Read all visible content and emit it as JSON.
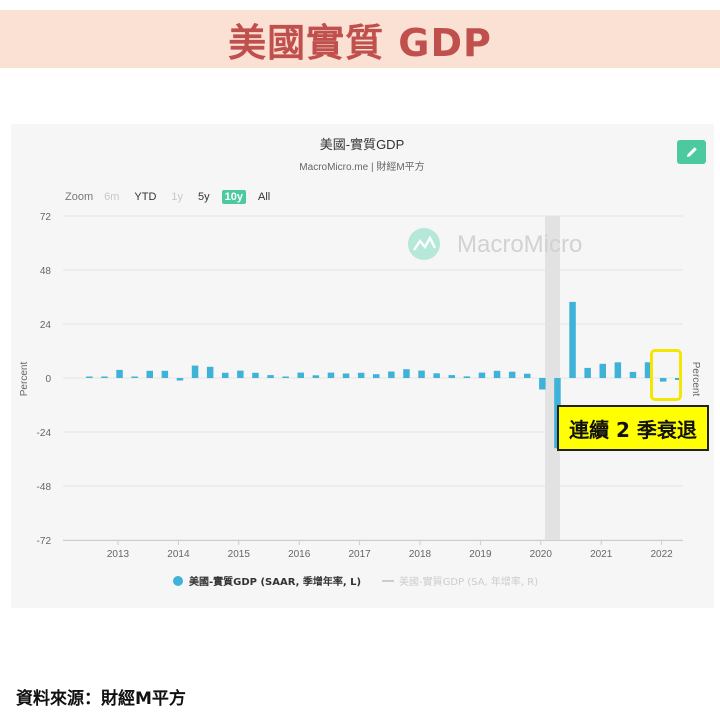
{
  "banner": {
    "title": "美國實質 GDP"
  },
  "source": {
    "text": "資料來源：財經M平方"
  },
  "callout": {
    "text": "連續 2 季衰退"
  },
  "toolbar": {
    "zoom_label": "Zoom",
    "ranges": [
      {
        "label": "6m",
        "state": "disabled"
      },
      {
        "label": "YTD",
        "state": "normal"
      },
      {
        "label": "1y",
        "state": "disabled"
      },
      {
        "label": "5y",
        "state": "normal"
      },
      {
        "label": "10y",
        "state": "active"
      },
      {
        "label": "All",
        "state": "normal"
      }
    ],
    "edit_icon": "pencil-icon"
  },
  "colors": {
    "accent": "#4dc9a0",
    "bar": "#3fb2d8",
    "line": "#cccccc",
    "banner_bg": "#fbe1d3",
    "banner_text": "#c0504d"
  },
  "chart_data": {
    "type": "bar",
    "title": "美國-實質GDP",
    "subtitle": "MacroMicro.me | 財經M平方",
    "watermark": "MacroMicro",
    "ylabel_left": "Percent",
    "ylabel_right": "Percent",
    "ylim": [
      -72,
      72
    ],
    "yticks": [
      72,
      48,
      24,
      0,
      -24,
      -48,
      -72
    ],
    "xticks": [
      "2013",
      "2014",
      "2015",
      "2016",
      "2017",
      "2018",
      "2019",
      "2020",
      "2021",
      "2022"
    ],
    "recession_shading": "2020",
    "series": [
      {
        "name": "美國-實質GDP (SAAR, 季增年率, L)",
        "type": "bar",
        "x": [
          "2012Q3",
          "2012Q4",
          "2013Q1",
          "2013Q2",
          "2013Q3",
          "2013Q4",
          "2014Q1",
          "2014Q2",
          "2014Q3",
          "2014Q4",
          "2015Q1",
          "2015Q2",
          "2015Q3",
          "2015Q4",
          "2016Q1",
          "2016Q2",
          "2016Q3",
          "2016Q4",
          "2017Q1",
          "2017Q2",
          "2017Q3",
          "2017Q4",
          "2018Q1",
          "2018Q2",
          "2018Q3",
          "2018Q4",
          "2019Q1",
          "2019Q2",
          "2019Q3",
          "2019Q4",
          "2020Q1",
          "2020Q2",
          "2020Q3",
          "2020Q4",
          "2021Q1",
          "2021Q2",
          "2021Q3",
          "2021Q4",
          "2022Q1",
          "2022Q2"
        ],
        "values": [
          0.5,
          0.1,
          3.6,
          0.5,
          3.2,
          3.2,
          -1.1,
          5.5,
          5.0,
          2.3,
          3.3,
          2.3,
          1.3,
          0.6,
          2.4,
          1.2,
          2.4,
          2.0,
          2.3,
          1.7,
          2.9,
          3.9,
          3.3,
          2.1,
          1.3,
          0.7,
          2.4,
          3.2,
          2.8,
          1.9,
          -5.1,
          -31.2,
          33.8,
          4.5,
          6.3,
          7.0,
          2.7,
          7.0,
          -1.6,
          -0.9
        ]
      },
      {
        "name": "美國-實質GDP (SA, 年增率, R)",
        "type": "line",
        "hidden": true
      }
    ],
    "legend": "bottom-center"
  }
}
